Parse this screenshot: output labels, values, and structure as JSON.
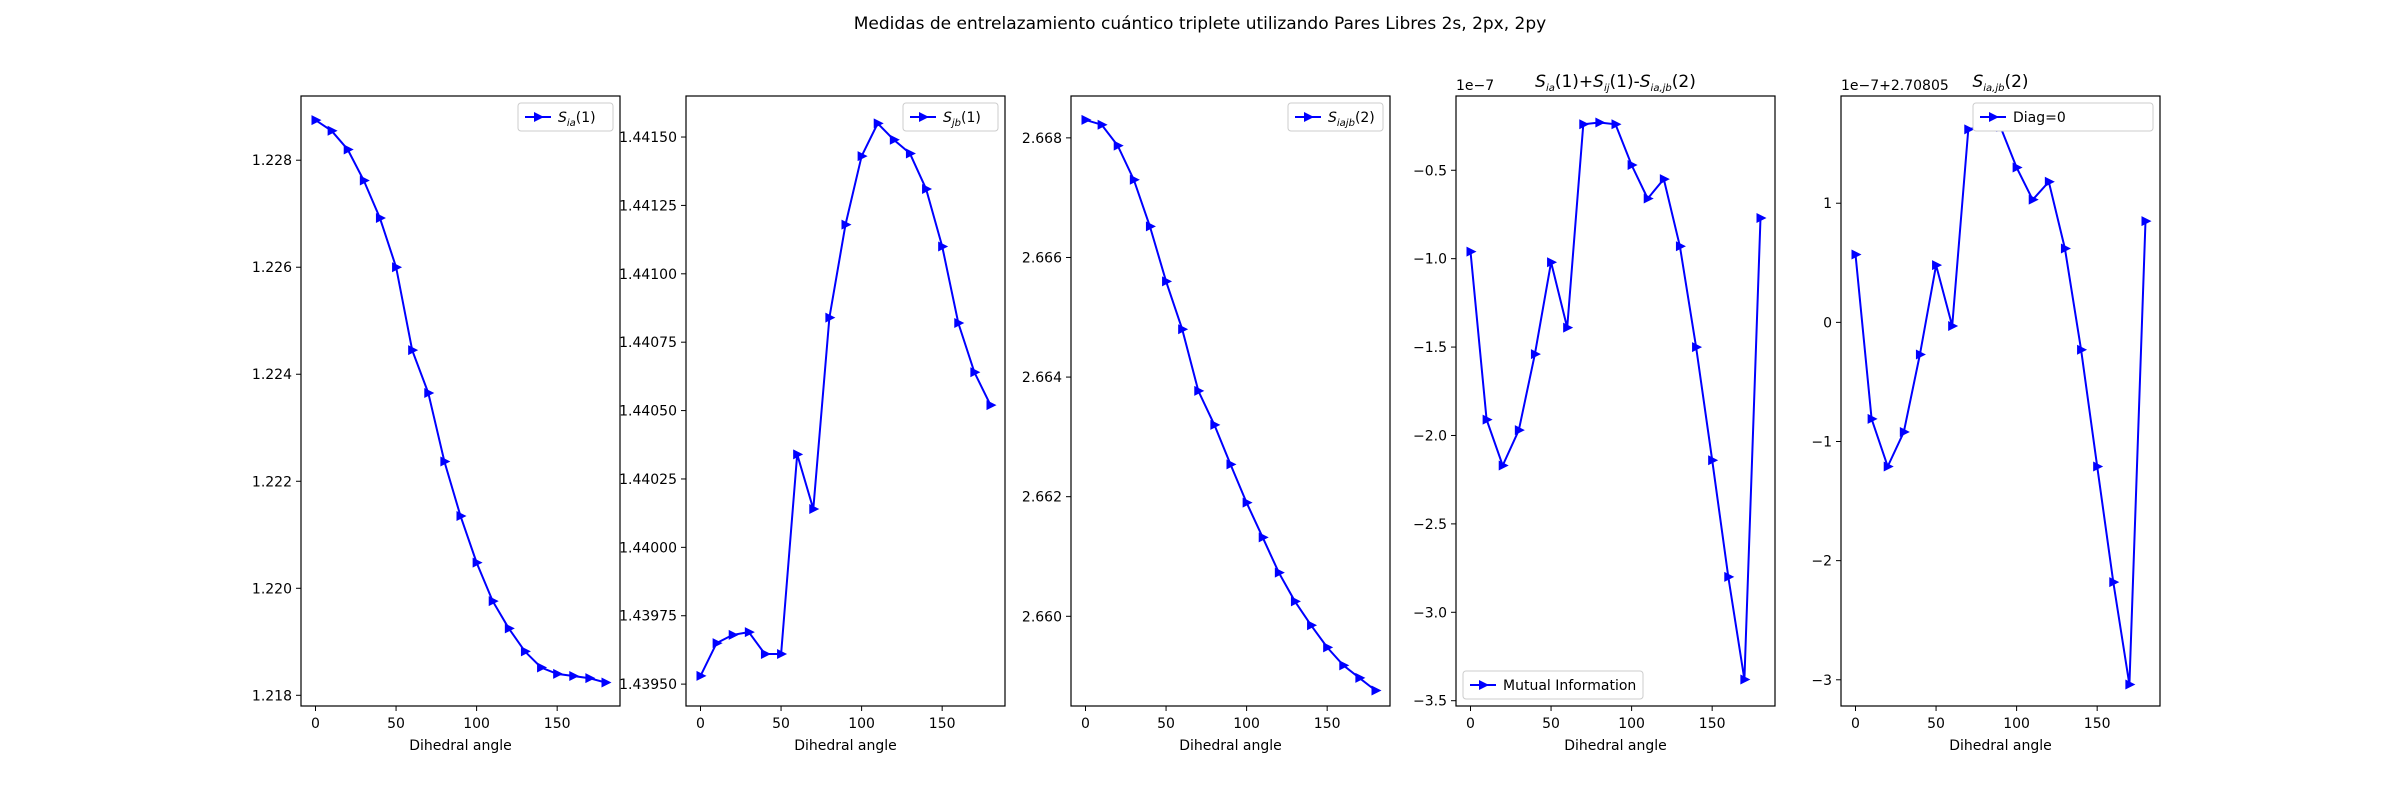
{
  "suptitle": "Medidas de entrelazamiento cuántico triplete utilizando Pares Libres 2s, 2px, 2py",
  "chart_data": [
    {
      "type": "line",
      "x": [
        0,
        10,
        20,
        30,
        40,
        50,
        60,
        70,
        80,
        90,
        100,
        110,
        120,
        130,
        140,
        150,
        160,
        170,
        180
      ],
      "xlabel": "Dihedral angle",
      "ylabel": "",
      "xlim": [
        -9,
        189
      ],
      "ylim": [
        1.2178,
        1.2292
      ],
      "xticks": [
        0,
        50,
        100,
        150
      ],
      "yticks": [
        1.218,
        1.22,
        1.222,
        1.224,
        1.226,
        1.228
      ],
      "ytick_labels": [
        "1.218",
        "1.220",
        "1.222",
        "1.224",
        "1.226",
        "1.228"
      ],
      "offset_text": "",
      "title": "",
      "legend_position": "upper right",
      "series": [
        {
          "name": "S_ia(1)",
          "name_main": "S",
          "name_sub": "ia",
          "name_tail": "(1)",
          "color": "#0000ff",
          "marker": "triangle-right",
          "values": [
            1.22875,
            1.22855,
            1.2282,
            1.22762,
            1.22692,
            1.226,
            1.22445,
            1.22365,
            1.22237,
            1.22135,
            1.22048,
            1.21976,
            1.21925,
            1.21882,
            1.21852,
            1.2184,
            1.21836,
            1.21832,
            1.21824
          ]
        }
      ]
    },
    {
      "type": "line",
      "x": [
        0,
        10,
        20,
        30,
        40,
        50,
        60,
        70,
        80,
        90,
        100,
        110,
        120,
        130,
        140,
        150,
        160,
        170,
        180
      ],
      "xlabel": "Dihedral angle",
      "ylabel": "",
      "xlim": [
        -9,
        189
      ],
      "ylim": [
        1.43942,
        1.44165
      ],
      "xticks": [
        0,
        50,
        100,
        150
      ],
      "yticks": [
        1.4395,
        1.43975,
        1.44,
        1.44025,
        1.4405,
        1.44075,
        1.441,
        1.44125,
        1.4415
      ],
      "ytick_labels": [
        "1.43950",
        "1.43975",
        "1.44000",
        "1.44025",
        "1.44050",
        "1.44075",
        "1.44100",
        "1.44125",
        "1.44150"
      ],
      "offset_text": "",
      "title": "",
      "legend_position": "upper right",
      "series": [
        {
          "name": "S_jb(1)",
          "name_main": "S",
          "name_sub": "jb",
          "name_tail": "(1)",
          "color": "#0000ff",
          "marker": "triangle-right",
          "values": [
            1.43953,
            1.43965,
            1.43968,
            1.43969,
            1.43961,
            1.43961,
            1.44034,
            1.44014,
            1.44084,
            1.44118,
            1.44143,
            1.44155,
            1.44149,
            1.44144,
            1.44131,
            1.4411,
            1.44082,
            1.44064,
            1.44052
          ]
        }
      ]
    },
    {
      "type": "line",
      "x": [
        0,
        10,
        20,
        30,
        40,
        50,
        60,
        70,
        80,
        90,
        100,
        110,
        120,
        130,
        140,
        150,
        160,
        170,
        180
      ],
      "xlabel": "Dihedral angle",
      "ylabel": "",
      "xlim": [
        -9,
        189
      ],
      "ylim": [
        2.6585,
        2.6687
      ],
      "xticks": [
        0,
        50,
        100,
        150
      ],
      "yticks": [
        2.66,
        2.662,
        2.664,
        2.666,
        2.668
      ],
      "ytick_labels": [
        "2.660",
        "2.662",
        "2.664",
        "2.666",
        "2.668"
      ],
      "offset_text": "",
      "title": "",
      "legend_position": "upper right",
      "series": [
        {
          "name": "S_iajb(2)",
          "name_main": "S",
          "name_sub": "iajb",
          "name_tail": "(2)",
          "color": "#0000ff",
          "marker": "triangle-right",
          "values": [
            2.6683,
            2.66822,
            2.66787,
            2.6673,
            2.66652,
            2.6656,
            2.6648,
            2.66377,
            2.6632,
            2.66254,
            2.6619,
            2.66132,
            2.66073,
            2.66025,
            2.65985,
            2.65948,
            2.65918,
            2.65897,
            2.65876
          ]
        }
      ]
    },
    {
      "type": "line",
      "x": [
        0,
        10,
        20,
        30,
        40,
        50,
        60,
        70,
        80,
        90,
        100,
        110,
        120,
        130,
        140,
        150,
        160,
        170,
        180
      ],
      "xlabel": "Dihedral angle",
      "ylabel": "",
      "xlim": [
        -9,
        189
      ],
      "ylim": [
        -3.53,
        -0.08
      ],
      "xticks": [
        0,
        50,
        100,
        150
      ],
      "yticks": [
        -3.5,
        -3.0,
        -2.5,
        -2.0,
        -1.5,
        -1.0,
        -0.5
      ],
      "ytick_labels": [
        "−3.5",
        "−3.0",
        "−2.5",
        "−2.0",
        "−1.5",
        "−1.0",
        "−0.5"
      ],
      "offset_text": "1e−7",
      "title": "S_ia(1)+S_ij(1)-S_ia,jb(2)",
      "legend_position": "lower left",
      "series": [
        {
          "name": "Mutual Information",
          "color": "#0000ff",
          "marker": "triangle-right",
          "values": [
            -0.96,
            -1.91,
            -2.17,
            -1.97,
            -1.54,
            -1.02,
            -1.39,
            -0.24,
            -0.23,
            -0.24,
            -0.47,
            -0.66,
            -0.55,
            -0.93,
            -1.5,
            -2.14,
            -2.8,
            -3.38,
            -0.77
          ]
        }
      ]
    },
    {
      "type": "line",
      "x": [
        0,
        10,
        20,
        30,
        40,
        50,
        60,
        70,
        80,
        90,
        100,
        110,
        120,
        130,
        140,
        150,
        160,
        170,
        180
      ],
      "xlabel": "Dihedral angle",
      "ylabel": "",
      "xlim": [
        -9,
        189
      ],
      "ylim": [
        -3.22,
        1.9
      ],
      "xticks": [
        0,
        50,
        100,
        150
      ],
      "yticks": [
        -3,
        -2,
        -1,
        0,
        1
      ],
      "ytick_labels": [
        "−3",
        "−2",
        "−1",
        "0",
        "1"
      ],
      "offset_text": "1e−7+2.70805",
      "title": "S_ia,jb(2)",
      "legend_position": "upper right",
      "series": [
        {
          "name": "Diag=0",
          "color": "#0000ff",
          "marker": "triangle-right",
          "values": [
            0.57,
            -0.81,
            -1.21,
            -0.92,
            -0.27,
            0.48,
            -0.03,
            1.62,
            1.65,
            1.64,
            1.3,
            1.03,
            1.18,
            0.62,
            -0.23,
            -1.21,
            -2.18,
            -3.04,
            0.85
          ]
        }
      ]
    }
  ]
}
